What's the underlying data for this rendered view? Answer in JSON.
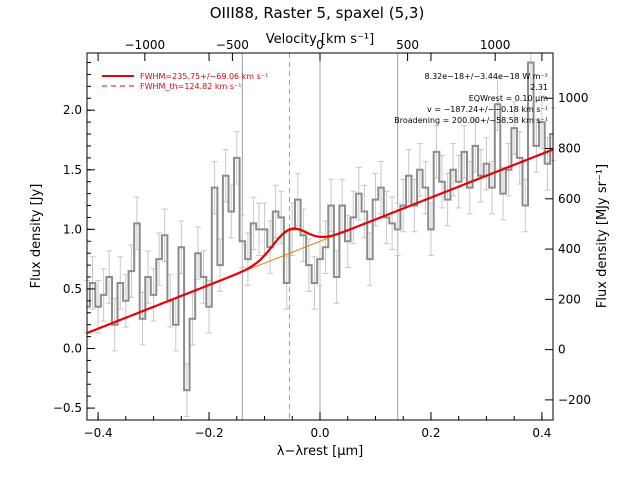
{
  "chart_data": {
    "type": "line",
    "title": "OIII88, Raster 5, spaxel (5,3)",
    "xlabel": "λ−λrest [μm]",
    "x2label": "Velocity [km s⁻¹]",
    "ylabel": "Flux density [Jy]",
    "y2label": "Flux density [MJy sr⁻¹]",
    "xlim": [
      -0.42,
      0.42
    ],
    "ylim": [
      -0.6,
      2.48
    ],
    "x2lim": [
      -1330,
      1330
    ],
    "y2lim": [
      -280,
      1180
    ],
    "xticks": [
      -0.4,
      -0.2,
      0.0,
      0.2,
      0.4
    ],
    "xtick_labels": [
      "−0.4",
      "−0.2",
      "0.0",
      "0.2",
      "0.4"
    ],
    "yticks": [
      -0.5,
      0.0,
      0.5,
      1.0,
      1.5,
      2.0
    ],
    "ytick_labels": [
      "−0.5",
      "0.0",
      "0.5",
      "1.0",
      "1.5",
      "2.0"
    ],
    "x2ticks": [
      -1000,
      -500,
      0,
      500,
      1000
    ],
    "x2tick_labels": [
      "−1000",
      "−500",
      "0",
      "500",
      "1000"
    ],
    "y2ticks": [
      -200,
      0,
      200,
      400,
      600,
      800,
      1000
    ],
    "y2tick_labels": [
      "−200",
      "0",
      "200",
      "400",
      "600",
      "800",
      "1000"
    ],
    "vlines_solid": [
      -0.14,
      0.0,
      0.14
    ],
    "vline_dashed": -0.055,
    "legend": [
      {
        "label": "FWHM=235.75+/−69.06 km s⁻¹",
        "style": "solid",
        "color": "#e8000b"
      },
      {
        "label": "FWHM_th=124.82 km s⁻¹",
        "style": "dashed",
        "color": "#e8000b"
      }
    ],
    "annotations": [
      "8.32e−18+/−3.44e−18 W m⁻²",
      "2.31",
      "EQWrest = 0.10 μm",
      "v = −187.24+/−−0.18 km s⁻¹",
      "Broadening = 200.00+/−58.58 km s⁻¹"
    ],
    "colors": {
      "data": "#8c8c8c",
      "model": "#e8000b",
      "line_component": "#f07800",
      "vline": "#a0a0a0",
      "errorbar": "#c8c8c8"
    },
    "continuum": {
      "x": [
        -0.42,
        0.42
      ],
      "y": [
        0.13,
        1.67
      ]
    },
    "gaussian": {
      "center": -0.055,
      "amplitude": 0.2,
      "sigma": 0.03
    },
    "series": [
      {
        "x": [
          -0.42,
          -0.41,
          -0.4,
          -0.39,
          -0.38,
          -0.37,
          -0.36,
          -0.35,
          -0.34,
          -0.33,
          -0.32,
          -0.31,
          -0.3,
          -0.29,
          -0.28,
          -0.27,
          -0.26,
          -0.25,
          -0.24,
          -0.23,
          -0.22,
          -0.21,
          -0.2,
          -0.19,
          -0.18,
          -0.17,
          -0.16,
          -0.15,
          -0.14,
          -0.13,
          -0.12,
          -0.11,
          -0.1,
          -0.09,
          -0.08,
          -0.07,
          -0.06,
          -0.05,
          -0.04,
          -0.03,
          -0.02,
          -0.01,
          0.0,
          0.01,
          0.02,
          0.03,
          0.04,
          0.05,
          0.06,
          0.07,
          0.08,
          0.09,
          0.1,
          0.11,
          0.12,
          0.13,
          0.14,
          0.15,
          0.16,
          0.17,
          0.18,
          0.19,
          0.2,
          0.21,
          0.22,
          0.23,
          0.24,
          0.25,
          0.26,
          0.27,
          0.28,
          0.29,
          0.3,
          0.31,
          0.32,
          0.33,
          0.34,
          0.35,
          0.36,
          0.37,
          0.38,
          0.39,
          0.4,
          0.41,
          0.42
        ],
        "y": [
          0.35,
          0.55,
          0.35,
          0.45,
          0.6,
          0.2,
          0.55,
          0.4,
          0.65,
          1.05,
          0.25,
          0.6,
          0.45,
          0.75,
          0.95,
          0.4,
          0.2,
          0.85,
          -0.35,
          0.25,
          0.8,
          0.6,
          0.35,
          1.35,
          0.7,
          1.45,
          1.15,
          1.6,
          0.9,
          0.75,
          1.05,
          1.0,
          1.0,
          0.85,
          1.15,
          1.1,
          0.55,
          1.0,
          1.25,
          0.95,
          0.7,
          0.55,
          0.75,
          0.85,
          1.2,
          0.6,
          1.2,
          0.9,
          1.1,
          1.3,
          1.15,
          0.75,
          1.25,
          1.35,
          1.1,
          1.05,
          1.0,
          1.2,
          1.45,
          1.2,
          1.5,
          1.35,
          1.0,
          1.65,
          1.4,
          1.25,
          1.5,
          1.4,
          1.65,
          1.35,
          1.7,
          1.45,
          1.55,
          1.35,
          2.05,
          1.3,
          1.5,
          1.85,
          1.6,
          1.2,
          2.4,
          1.7,
          1.9,
          1.55,
          1.8
        ],
        "yerr": 0.22
      }
    ]
  }
}
